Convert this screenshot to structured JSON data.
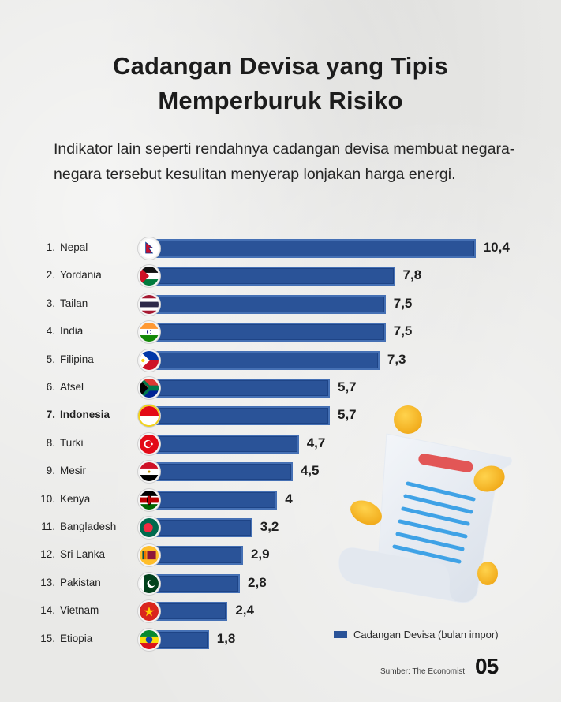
{
  "header": {
    "title_line1": "Cadangan Devisa yang Tipis",
    "title_line2": "Memperburuk Risiko",
    "subtitle": "Indikator lain seperti rendahnya cadangan devisa membuat negara-negara tersebut kesulitan menyerap lonjakan harga energi."
  },
  "rows": [
    {
      "rank": "1.",
      "country": "Nepal",
      "value": "10,4",
      "flag": "nepal-flag"
    },
    {
      "rank": "2.",
      "country": "Yordania",
      "value": "7,8",
      "flag": "jordan-flag"
    },
    {
      "rank": "3.",
      "country": "Tailan",
      "value": "7,5",
      "flag": "thailand-flag"
    },
    {
      "rank": "4.",
      "country": "India",
      "value": "7,5",
      "flag": "india-flag"
    },
    {
      "rank": "5.",
      "country": "Filipina",
      "value": "7,3",
      "flag": "philippines-flag"
    },
    {
      "rank": "6.",
      "country": "Afsel",
      "value": "5,7",
      "flag": "south-africa-flag"
    },
    {
      "rank": "7.",
      "country": "Indonesia",
      "value": "5,7",
      "flag": "indonesia-flag",
      "highlight": true
    },
    {
      "rank": "8.",
      "country": "Turki",
      "value": "4,7",
      "flag": "turkey-flag"
    },
    {
      "rank": "9.",
      "country": "Mesir",
      "value": "4,5",
      "flag": "egypt-flag"
    },
    {
      "rank": "10.",
      "country": "Kenya",
      "value": "4",
      "flag": "kenya-flag"
    },
    {
      "rank": "11.",
      "country": "Bangladesh",
      "value": "3,2",
      "flag": "bangladesh-flag"
    },
    {
      "rank": "12.",
      "country": "Sri Lanka",
      "value": "2,9",
      "flag": "sri-lanka-flag"
    },
    {
      "rank": "13.",
      "country": "Pakistan",
      "value": "2,8",
      "flag": "pakistan-flag"
    },
    {
      "rank": "14.",
      "country": "Vietnam",
      "value": "2,4",
      "flag": "vietnam-flag"
    },
    {
      "rank": "15.",
      "country": "Etiopia",
      "value": "1,8",
      "flag": "ethiopia-flag"
    }
  ],
  "legend": {
    "label": "Cadangan Devisa (bulan impor)",
    "color": "#2a5398"
  },
  "footer": {
    "source": "Sumber: The Economist",
    "page": "05"
  },
  "chart_data": {
    "type": "bar",
    "orientation": "horizontal",
    "title": "Cadangan Devisa yang Tipis Memperburuk Risiko",
    "subtitle": "Indikator lain seperti rendahnya cadangan devisa membuat negara-negara tersebut kesulitan menyerap lonjakan harga energi.",
    "categories": [
      "Nepal",
      "Yordania",
      "Tailan",
      "India",
      "Filipina",
      "Afsel",
      "Indonesia",
      "Turki",
      "Mesir",
      "Kenya",
      "Bangladesh",
      "Sri Lanka",
      "Pakistan",
      "Vietnam",
      "Etiopia"
    ],
    "series": [
      {
        "name": "Cadangan Devisa (bulan impor)",
        "color": "#2a5398",
        "values": [
          10.4,
          7.8,
          7.5,
          7.5,
          7.3,
          5.7,
          5.7,
          4.7,
          4.5,
          4.0,
          3.2,
          2.9,
          2.8,
          2.4,
          1.8
        ]
      }
    ],
    "xlabel": "",
    "ylabel": "",
    "grid": false,
    "legend_position": "bottom-right",
    "highlighted_category": "Indonesia",
    "source": "Sumber: The Economist"
  }
}
